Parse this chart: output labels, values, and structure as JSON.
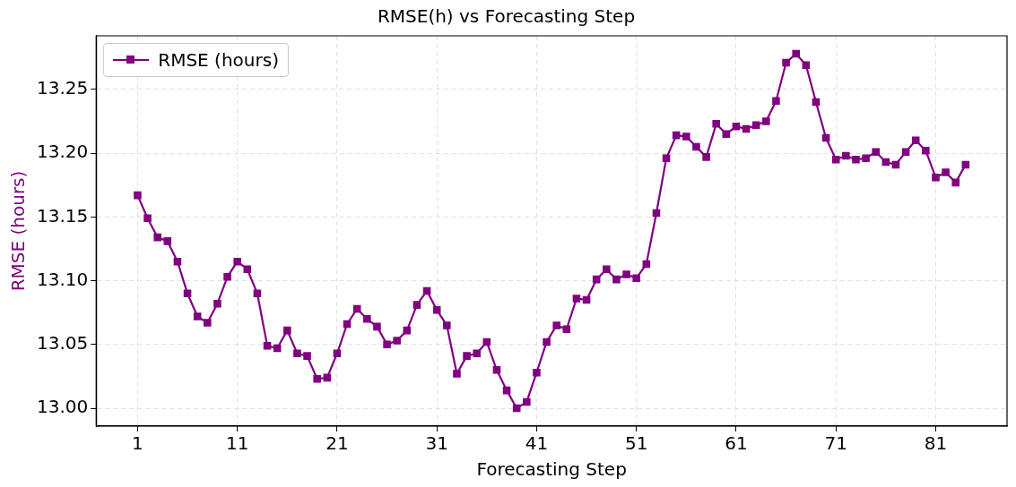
{
  "chart_data": {
    "type": "line",
    "title": "RMSE(h) vs Forecasting Step",
    "xlabel": "Forecasting Step",
    "ylabel": "RMSE (hours)",
    "x": [
      1,
      2,
      3,
      4,
      5,
      6,
      7,
      8,
      9,
      10,
      11,
      12,
      13,
      14,
      15,
      16,
      17,
      18,
      19,
      20,
      21,
      22,
      23,
      24,
      25,
      26,
      27,
      28,
      29,
      30,
      31,
      32,
      33,
      34,
      35,
      36,
      37,
      38,
      39,
      40,
      41,
      42,
      43,
      44,
      45,
      46,
      47,
      48,
      49,
      50,
      51,
      52,
      53,
      54,
      55,
      56,
      57,
      58,
      59,
      60,
      61,
      62,
      63,
      64,
      65,
      66,
      67,
      68,
      69,
      70,
      71,
      72,
      73,
      74,
      75,
      76,
      77,
      78,
      79,
      80,
      81,
      82,
      83,
      84
    ],
    "series": [
      {
        "name": "RMSE (hours)",
        "color": "#800080",
        "values": [
          13.167,
          13.149,
          13.134,
          13.131,
          13.115,
          13.09,
          13.072,
          13.067,
          13.082,
          13.103,
          13.115,
          13.109,
          13.09,
          13.049,
          13.047,
          13.061,
          13.043,
          13.041,
          13.023,
          13.024,
          13.043,
          13.066,
          13.078,
          13.07,
          13.064,
          13.05,
          13.053,
          13.061,
          13.081,
          13.092,
          13.077,
          13.065,
          13.027,
          13.041,
          13.043,
          13.052,
          13.03,
          13.014,
          13.0,
          13.005,
          13.028,
          13.052,
          13.065,
          13.062,
          13.086,
          13.085,
          13.101,
          13.109,
          13.101,
          13.105,
          13.102,
          13.113,
          13.153,
          13.196,
          13.214,
          13.213,
          13.205,
          13.197,
          13.223,
          13.215,
          13.221,
          13.219,
          13.222,
          13.225,
          13.241,
          13.271,
          13.278,
          13.269,
          13.24,
          13.212,
          13.195,
          13.198,
          13.195,
          13.196,
          13.201,
          13.193,
          13.191,
          13.201,
          13.21,
          13.202,
          13.181,
          13.185,
          13.177,
          13.191
        ]
      }
    ],
    "xlim": [
      -3.15,
      88.15
    ],
    "xticks": [
      1,
      11,
      21,
      31,
      41,
      51,
      61,
      71,
      81
    ],
    "ylim": [
      12.986,
      13.292
    ],
    "yticks": [
      {
        "value": 13,
        "label": "13.00"
      },
      13.05,
      {
        "value": 13.1,
        "label": "13.10"
      },
      13.15,
      {
        "value": 13.2,
        "label": "13.20"
      },
      13.25
    ],
    "grid": true,
    "legend": "top left",
    "marker": "square",
    "line_style": "solid"
  }
}
